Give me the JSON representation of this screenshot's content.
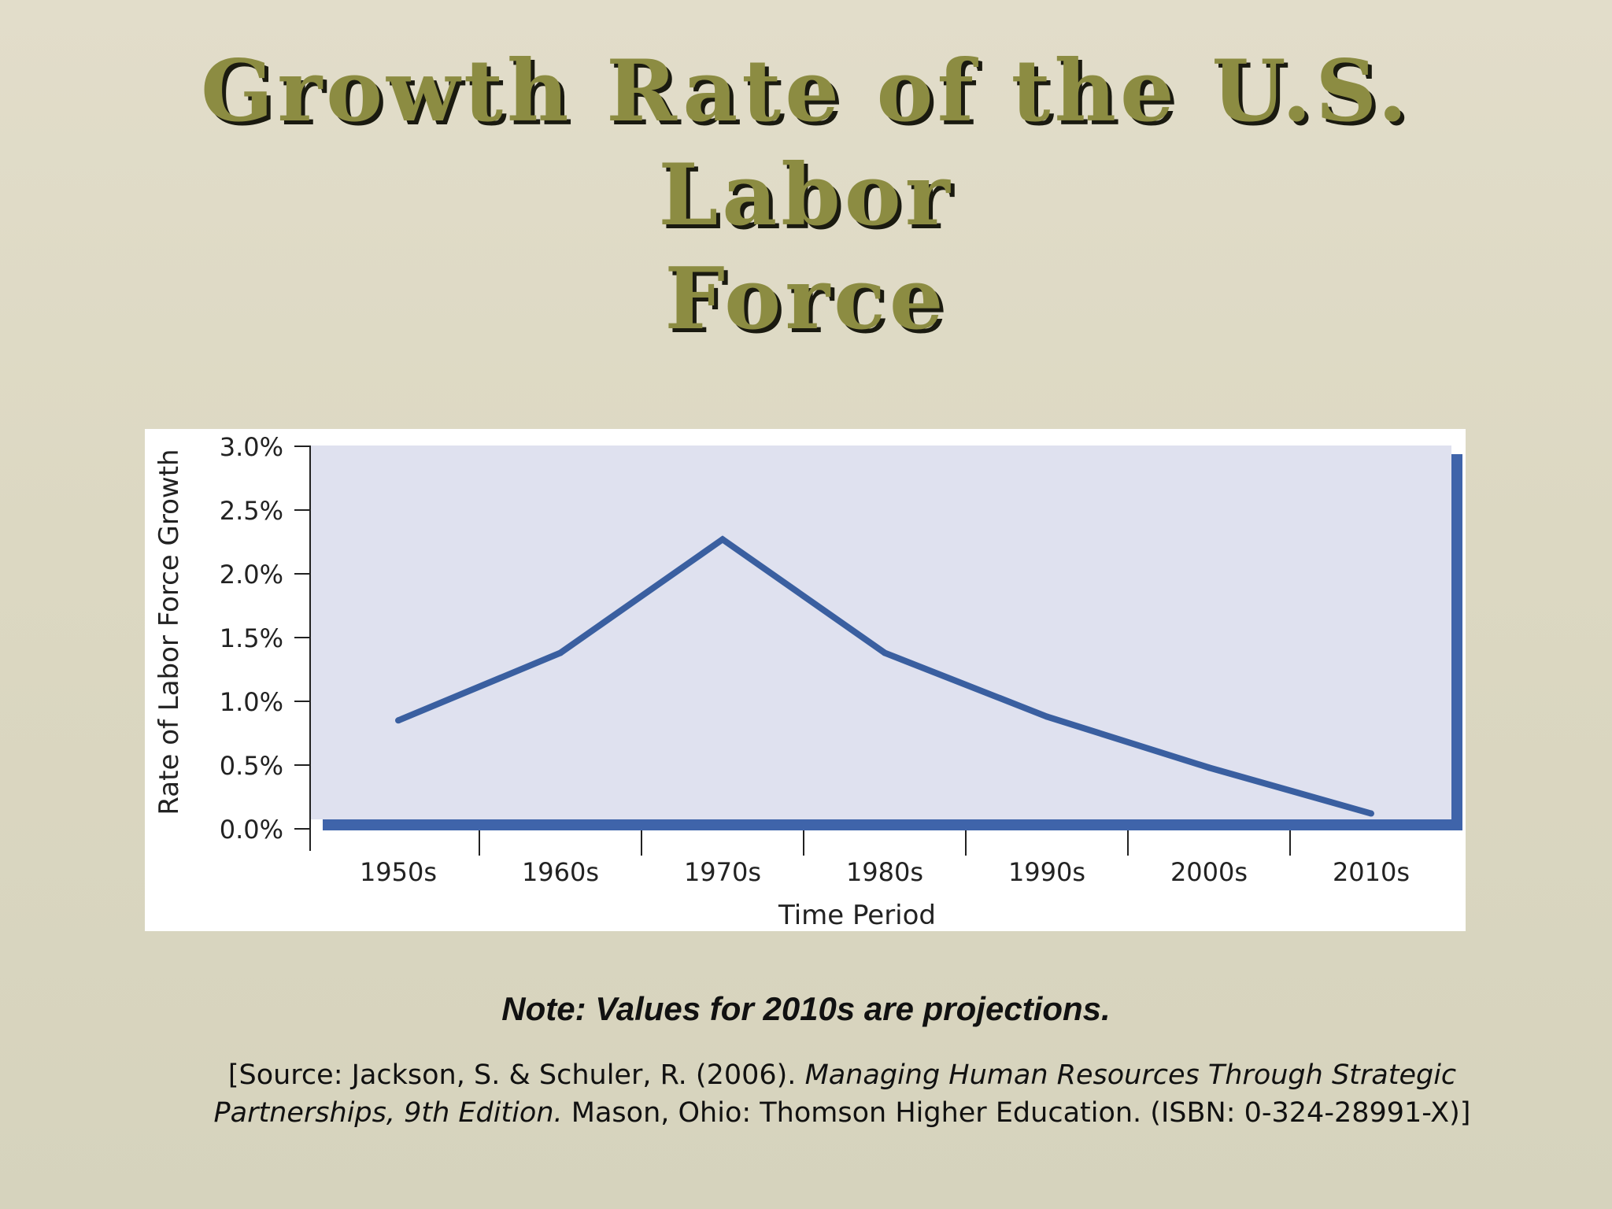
{
  "slide": {
    "title_line1": "Growth Rate of the U.S. Labor",
    "title_line2": "Force",
    "note": "Note: Values for 2010s are projections.",
    "source": {
      "prefix": "[Source:  Jackson, S. & Schuler, R. (2006). ",
      "book_title": "Managing Human Resources Through Strategic Partnerships, 9th Edition.",
      "suffix": "  Mason, Ohio:  Thomson Higher Education.  (ISBN:  0-324-28991-X)]"
    }
  },
  "chart_data": {
    "type": "line",
    "title": "",
    "xlabel": "Time Period",
    "ylabel": "Rate of Labor Force Growth",
    "categories": [
      "1950s",
      "1960s",
      "1970s",
      "1980s",
      "1990s",
      "2000s",
      "2010s"
    ],
    "series": [
      {
        "values": [
          0.85,
          1.38,
          2.27,
          1.38,
          0.88,
          0.48,
          0.12
        ]
      }
    ],
    "ylim": [
      0,
      3
    ],
    "yticks": [
      "0.0%",
      "0.5%",
      "1.0%",
      "1.5%",
      "2.0%",
      "2.5%",
      "3.0%"
    ],
    "grid": false,
    "colors": {
      "line": "#3a5fa0",
      "plot_background": "#dfe1ef",
      "frame": "#3f64aa"
    }
  }
}
